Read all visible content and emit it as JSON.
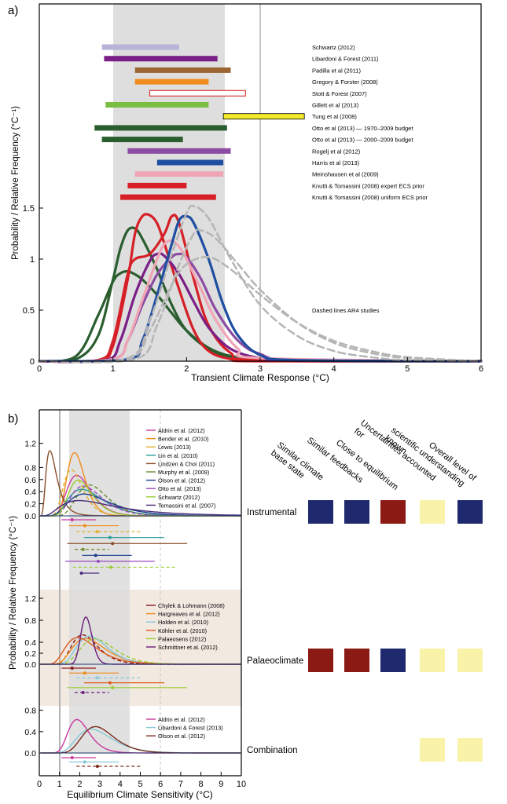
{
  "chart_data": [
    {
      "type": "line",
      "panel_label": "a)",
      "xlabel": "Transient Climate Response (°C)",
      "ylabel": "Probability / Relative Frequency (°C⁻¹)",
      "xlim": [
        0,
        6
      ],
      "ylim": [
        0,
        1.5
      ],
      "xticks": [
        0,
        1,
        2,
        3,
        4,
        5,
        6
      ],
      "yticks": [
        0,
        0.5,
        1,
        1.5
      ],
      "likely_range": [
        1.0,
        2.5
      ],
      "vertical_line": 3.0,
      "annotation": "Dashed lines AR4 studies",
      "ranges": [
        {
          "name": "Schwartz (2012)",
          "min": 0.85,
          "max": 1.9,
          "color": "#b7b3d9",
          "style": "filled"
        },
        {
          "name": "Libardoni & Forest (2011)",
          "min": 0.88,
          "max": 2.42,
          "color": "#7b1f86",
          "style": "filled"
        },
        {
          "name": "Padilla et al (2011)",
          "min": 1.3,
          "max": 2.6,
          "color": "#9c6632",
          "style": "filled"
        },
        {
          "name": "Gregory & Forster (2008)",
          "min": 1.3,
          "max": 2.3,
          "color": "#f08c1c",
          "style": "filled"
        },
        {
          "name": "Stott & Forest (2007)",
          "min": 1.5,
          "max": 2.8,
          "color": "#d63c38",
          "style": "open"
        },
        {
          "name": "Gillett et al (2013)",
          "min": 0.9,
          "max": 2.3,
          "color": "#7bbd43",
          "style": "filled"
        },
        {
          "name": "Tung et al (2008)",
          "min": 2.5,
          "max": 3.6,
          "color": "#f2e92a",
          "style": "filled"
        },
        {
          "name": "Otto et al (2013) — 1970–2009 budget",
          "min": 0.75,
          "max": 2.55,
          "color": "#2a5e2e",
          "style": "filled"
        },
        {
          "name": "Otto et al (2013) — 2000–2009 budget",
          "min": 0.85,
          "max": 1.95,
          "color": "#2a5e2e",
          "style": "filled"
        },
        {
          "name": "Rogelj et al (2012)",
          "min": 1.2,
          "max": 2.6,
          "color": "#8c4ca3",
          "style": "filled"
        },
        {
          "name": "Harris et al (2013)",
          "min": 1.6,
          "max": 2.5,
          "color": "#1f4ea1",
          "style": "filled"
        },
        {
          "name": "Meinshausen et al (2009)",
          "min": 1.3,
          "max": 2.5,
          "color": "#f0a5b5",
          "style": "filled"
        },
        {
          "name": "Knutti & Tomassini (2008) expert ECS prior",
          "min": 1.2,
          "max": 2.0,
          "color": "#d61f26",
          "style": "filled"
        },
        {
          "name": "Knutti & Tomassini (2008) uniform ECS prior",
          "min": 1.1,
          "max": 2.4,
          "color": "#d61f26",
          "style": "filled"
        }
      ],
      "series": [
        {
          "color": "#2a5e2e",
          "style": "solid",
          "x": [
            0,
            0.5,
            0.8,
            1.0,
            1.1,
            1.2,
            1.3,
            1.4,
            1.6,
            1.8,
            2.0,
            2.3,
            2.6,
            3.0,
            3.5,
            4.0,
            6.0
          ],
          "y": [
            0,
            0.02,
            0.25,
            0.8,
            1.1,
            1.28,
            1.3,
            1.2,
            0.9,
            0.55,
            0.3,
            0.12,
            0.04,
            0.01,
            0,
            0,
            0
          ]
        },
        {
          "color": "#2a5e2e",
          "style": "solid",
          "x": [
            0,
            0.5,
            0.8,
            1.0,
            1.1,
            1.2,
            1.3,
            1.4,
            1.6,
            1.8,
            2.0,
            2.3,
            2.6,
            3.0,
            3.5,
            4.0,
            6.0
          ],
          "y": [
            0,
            0.05,
            0.45,
            0.78,
            0.86,
            0.88,
            0.85,
            0.8,
            0.65,
            0.47,
            0.3,
            0.13,
            0.05,
            0.02,
            0.005,
            0,
            0
          ]
        },
        {
          "color": "#d61f26",
          "style": "solid",
          "x": [
            0,
            0.8,
            1.0,
            1.2,
            1.3,
            1.4,
            1.5,
            1.6,
            1.7,
            1.9,
            2.1,
            2.3,
            2.6,
            3.0,
            6.0
          ],
          "y": [
            0,
            0.01,
            0.15,
            0.8,
            1.25,
            1.42,
            1.43,
            1.35,
            1.15,
            0.7,
            0.3,
            0.1,
            0.02,
            0,
            0
          ]
        },
        {
          "color": "#d61f26",
          "style": "solid",
          "x": [
            0,
            0.8,
            1.0,
            1.2,
            1.3,
            1.5,
            1.7,
            1.8,
            1.9,
            2.1,
            2.3,
            2.6,
            3.0,
            6.0
          ],
          "y": [
            0,
            0.01,
            0.2,
            0.85,
            1.0,
            1.05,
            1.25,
            1.42,
            1.35,
            0.8,
            0.35,
            0.08,
            0.01,
            0
          ]
        },
        {
          "color": "#7b1f86",
          "style": "solid",
          "x": [
            0,
            0.9,
            1.1,
            1.3,
            1.5,
            1.6,
            1.7,
            1.9,
            2.1,
            2.3,
            2.6,
            3.0,
            3.5,
            6.0
          ],
          "y": [
            0,
            0.01,
            0.2,
            0.65,
            0.98,
            1.05,
            1.03,
            0.85,
            0.58,
            0.33,
            0.12,
            0.03,
            0.005,
            0
          ]
        },
        {
          "color": "#8c4ca3",
          "style": "solid",
          "x": [
            0,
            1.0,
            1.2,
            1.4,
            1.6,
            1.8,
            1.9,
            2.0,
            2.2,
            2.4,
            2.7,
            3.0,
            3.5,
            6.0
          ],
          "y": [
            0,
            0.02,
            0.2,
            0.55,
            0.85,
            1.02,
            1.05,
            1.02,
            0.8,
            0.5,
            0.2,
            0.07,
            0.01,
            0
          ]
        },
        {
          "color": "#f0a5b5",
          "style": "solid",
          "x": [
            0,
            1.0,
            1.2,
            1.4,
            1.6,
            1.7,
            1.8,
            1.9,
            2.0,
            2.2,
            2.4,
            2.7,
            3.0,
            6.0
          ],
          "y": [
            0,
            0.02,
            0.2,
            0.6,
            1.0,
            1.15,
            1.18,
            1.12,
            1.0,
            0.7,
            0.4,
            0.12,
            0.03,
            0
          ]
        },
        {
          "color": "#1f4ea1",
          "style": "solid",
          "x": [
            0,
            1.2,
            1.4,
            1.6,
            1.8,
            1.9,
            2.0,
            2.1,
            2.3,
            2.5,
            2.7,
            3.0,
            3.5,
            6.0
          ],
          "y": [
            0,
            0.02,
            0.2,
            0.65,
            1.15,
            1.38,
            1.42,
            1.35,
            1.0,
            0.55,
            0.25,
            0.06,
            0.01,
            0
          ]
        },
        {
          "color": "#b5b5b5",
          "style": "dashed",
          "x": [
            0,
            1.2,
            1.5,
            1.8,
            2.0,
            2.1,
            2.3,
            2.6,
            3.0,
            3.5,
            4.0,
            4.5,
            5.0,
            6.0
          ],
          "y": [
            0,
            0.03,
            0.4,
            1.05,
            1.45,
            1.52,
            1.4,
            1.0,
            0.55,
            0.25,
            0.1,
            0.04,
            0.01,
            0
          ]
        },
        {
          "color": "#b5b5b5",
          "style": "dashed",
          "x": [
            0,
            1.3,
            1.6,
            1.9,
            2.1,
            2.2,
            2.4,
            2.7,
            3.0,
            3.5,
            4.0,
            4.5,
            5.0,
            6.0
          ],
          "y": [
            0,
            0.02,
            0.35,
            0.95,
            1.25,
            1.28,
            1.2,
            0.95,
            0.7,
            0.38,
            0.18,
            0.08,
            0.03,
            0
          ]
        },
        {
          "color": "#b5b5b5",
          "style": "dashed",
          "x": [
            0,
            1.2,
            1.5,
            1.8,
            2.0,
            2.3,
            2.6,
            3.0,
            3.5,
            4.0,
            4.5,
            5.0,
            6.0
          ],
          "y": [
            0,
            0.02,
            0.3,
            0.75,
            0.95,
            1.02,
            0.9,
            0.65,
            0.38,
            0.2,
            0.1,
            0.04,
            0
          ]
        }
      ]
    },
    {
      "type": "line",
      "panel_label": "b)",
      "xlabel": "Equilibrium Climate Sensitivity (°C)",
      "ylabel": "Probability / Relative Frequency (°C⁻¹)",
      "xlim": [
        0,
        10
      ],
      "xticks": [
        0,
        1,
        2,
        3,
        4,
        5,
        6,
        7,
        8,
        9,
        10
      ],
      "likely_range": [
        1.5,
        4.5
      ],
      "lines_at": [
        1.0,
        6.0
      ],
      "subpanels": [
        {
          "row_label": "Instrumental",
          "yticks": [
            0,
            0.2,
            0.4,
            0.6,
            0.8,
            1.2
          ],
          "ylim": [
            0,
            1.4
          ],
          "series": [
            {
              "name": "Aldrin et al. (2012)",
              "color": "#c8379d"
            },
            {
              "name": "Bender et al. (2010)",
              "color": "#f08c1c"
            },
            {
              "name": "Lewis (2013)",
              "color": "#e0b02a"
            },
            {
              "name": "Lin et al. (2010)",
              "color": "#2a9a9a"
            },
            {
              "name": "Lindzen & Choi (2011)",
              "color": "#8c4d2a"
            },
            {
              "name": "Murphy et al. (2009)",
              "color": "#6a8e2e"
            },
            {
              "name": "Olson et al. (2012)",
              "color": "#1a3e8c"
            },
            {
              "name": "Otto et al. (2013)",
              "color": "#9b4ac0"
            },
            {
              "name": "Schwartz (2012)",
              "color": "#9acd32"
            },
            {
              "name": "Tomassini et al. (2007)",
              "color": "#4a2a7a"
            }
          ]
        },
        {
          "row_label": "Palaeoclimate",
          "yticks": [
            0,
            0.2,
            0.4,
            0.8,
            1.2
          ],
          "ylim": [
            0,
            1.3
          ],
          "series": [
            {
              "name": "Chylek & Lohmann (2008)",
              "color": "#8b1a1a"
            },
            {
              "name": "Hargreaves et al. (2012)",
              "color": "#f08c1c"
            },
            {
              "name": "Holden et al. (2010)",
              "color": "#86c8d8"
            },
            {
              "name": "Köhler et al. (2010)",
              "color": "#e05a1a"
            },
            {
              "name": "Palaeosens (2012)",
              "color": "#9acd32"
            },
            {
              "name": "Schmittner et al. (2012)",
              "color": "#6a1a7a"
            }
          ]
        },
        {
          "row_label": "Combination",
          "yticks": [
            0,
            0.4,
            0.8
          ],
          "ylim": [
            0,
            0.9
          ],
          "series": [
            {
              "name": "Aldrin et al. (2012)",
              "color": "#c8379d"
            },
            {
              "name": "Libardoni & Forest (2013)",
              "color": "#86c8d8"
            },
            {
              "name": "Olson et al. (2012)",
              "color": "#7a2a1a"
            }
          ]
        }
      ]
    }
  ],
  "assessment": {
    "criteria": [
      "Similar climate base state",
      "Similar feedbacks",
      "Close to equilibrium",
      "Uncertainties accounted for",
      "Overall level of scientific understanding known"
    ],
    "criteria_lines": [
      [
        "Similar climate",
        "base state"
      ],
      [
        "Similar feedbacks"
      ],
      [
        "Close to equilibrium"
      ],
      [
        "Uncertainties accounted",
        "for"
      ],
      [
        "scientific understanding",
        "known"
      ],
      [
        "Overall level of"
      ]
    ],
    "colors": {
      "high": "#1f2a6e",
      "low": "#8c1a14",
      "medium": "#f8f3a8"
    },
    "rows": [
      {
        "label": "Instrumental",
        "levels": [
          "high",
          "high",
          "low",
          "medium",
          "high"
        ]
      },
      {
        "label": "Palaeoclimate",
        "levels": [
          "low",
          "low",
          "high",
          "medium",
          "medium"
        ]
      },
      {
        "label": "Combination",
        "levels": [
          "",
          "",
          "",
          "medium",
          "medium"
        ]
      }
    ]
  }
}
